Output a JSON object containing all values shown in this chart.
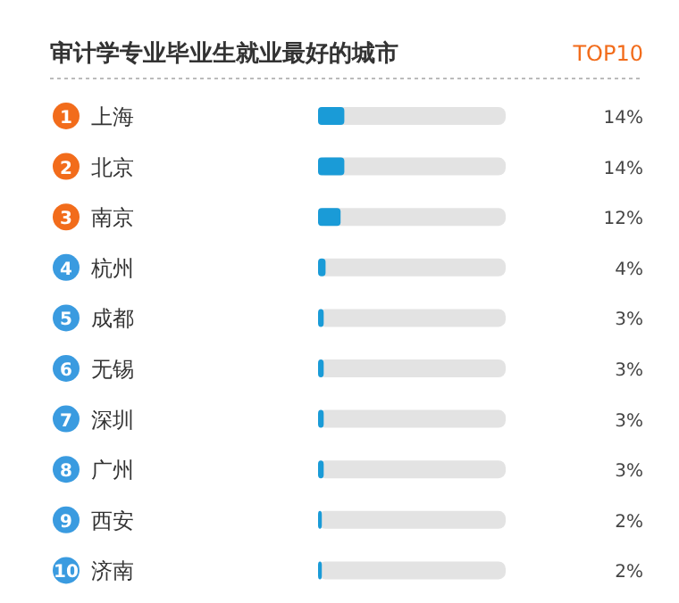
{
  "chart_data": {
    "type": "bar",
    "orientation": "horizontal",
    "title": "审计学专业毕业生就业最好的城市",
    "subtitle": "TOP10",
    "categories": [
      "上海",
      "北京",
      "南京",
      "杭州",
      "成都",
      "无锡",
      "深圳",
      "广州",
      "西安",
      "济南"
    ],
    "annotations": [
      "1",
      "2",
      "3",
      "4",
      "5",
      "6",
      "7",
      "8",
      "9",
      "10"
    ],
    "xlim": [
      0,
      100
    ],
    "series": [
      {
        "color": "#1a9bd7",
        "values": [
          14,
          14,
          12,
          4,
          3,
          3,
          3,
          3,
          2,
          2
        ],
        "value_labels": [
          "14%",
          "14%",
          "12%",
          "4%",
          "3%",
          "3%",
          "3%",
          "3%",
          "2%",
          "2%"
        ]
      }
    ]
  }
}
